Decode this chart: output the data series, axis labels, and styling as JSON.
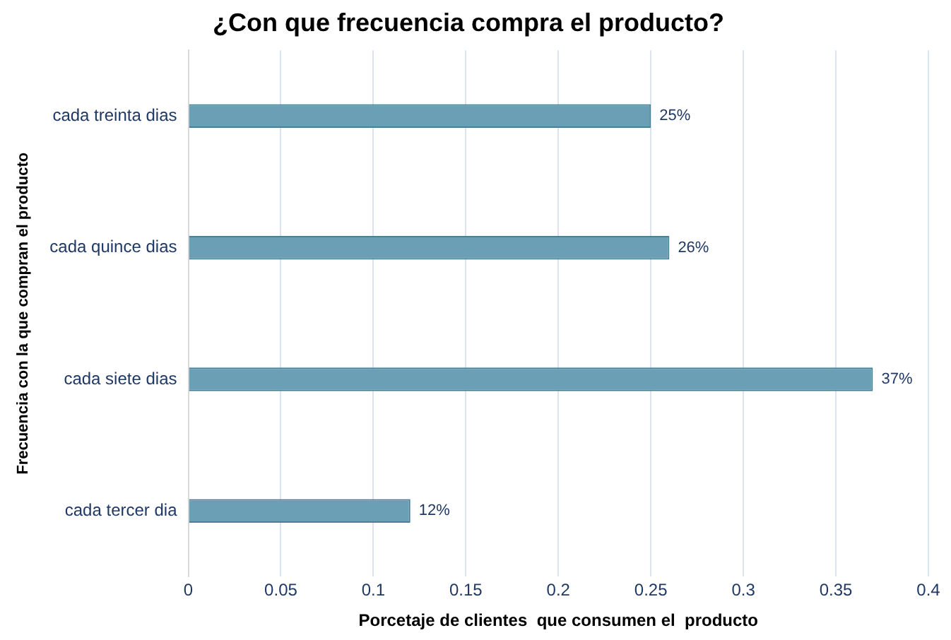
{
  "chart_data": {
    "type": "bar",
    "orientation": "horizontal",
    "title": "¿Con que frecuencia compra el producto?",
    "xlabel": "Porcetaje de clientes  que consumen el  producto",
    "ylabel": "Frecuencia con la que compran el producto",
    "categories": [
      "cada treinta dias",
      "cada quince dias",
      "cada siete dias",
      "cada tercer dia"
    ],
    "values": [
      0.25,
      0.26,
      0.37,
      0.12
    ],
    "value_labels": [
      "25%",
      "26%",
      "37%",
      "12%"
    ],
    "color": "#6a9fb5",
    "xlim": [
      0,
      0.4
    ],
    "xticks": [
      0,
      0.05,
      0.1,
      0.15,
      0.2,
      0.25,
      0.3,
      0.35,
      0.4
    ],
    "grid": "x",
    "legend": false
  }
}
